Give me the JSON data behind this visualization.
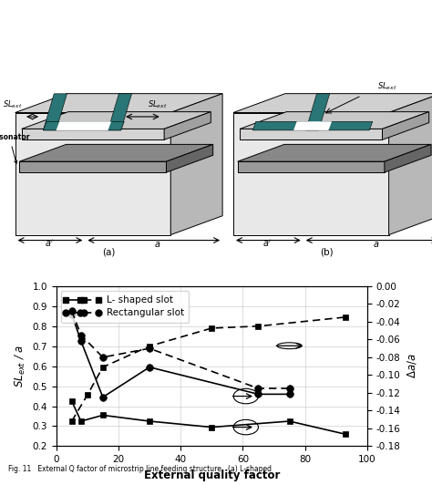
{
  "xlabel": "External quality factor",
  "ylabel_left": "$SL_{ext}$ / $a$",
  "ylabel_right": "$\\Delta a/a$",
  "xlim": [
    0,
    100
  ],
  "ylim_left": [
    0.2,
    1.0
  ],
  "ylim_right": [
    -0.18,
    0.0
  ],
  "xticks": [
    0,
    20,
    40,
    60,
    80,
    100
  ],
  "yticks_left": [
    0.2,
    0.3,
    0.4,
    0.5,
    0.6,
    0.7,
    0.8,
    0.9,
    1.0
  ],
  "yticks_right": [
    0.0,
    -0.02,
    -0.04,
    -0.06,
    -0.08,
    -0.1,
    -0.12,
    -0.14,
    -0.16,
    -0.18
  ],
  "L_solid_x": [
    5,
    8,
    15,
    30,
    50,
    75,
    93
  ],
  "L_solid_y": [
    0.425,
    0.325,
    0.355,
    0.325,
    0.295,
    0.325,
    0.26
  ],
  "L_dashed_x": [
    5,
    10,
    15,
    30,
    50,
    65,
    93
  ],
  "L_dashed_y": [
    0.325,
    0.455,
    0.595,
    0.7,
    0.79,
    0.8,
    0.845
  ],
  "R_solid_x": [
    5,
    8,
    15,
    30,
    65,
    75
  ],
  "R_solid_y": [
    0.86,
    0.725,
    0.445,
    0.595,
    0.46,
    0.46
  ],
  "R_dashed_x": [
    5,
    8,
    15,
    30,
    65,
    75
  ],
  "R_dashed_y": [
    -0.028,
    -0.055,
    -0.08,
    -0.07,
    -0.115,
    -0.115
  ],
  "teal": "#2a7575",
  "box_outline": "#000000",
  "box_top": "#d0d0d0",
  "box_front": "#e8e8e8",
  "box_side": "#b8b8b8",
  "plate_top": "#c8c8c8",
  "plate_front": "#d4d4d4",
  "plate_side": "#a0a0a0",
  "resonator_top": "#888888",
  "resonator_front": "#999999",
  "resonator_side": "#666666"
}
